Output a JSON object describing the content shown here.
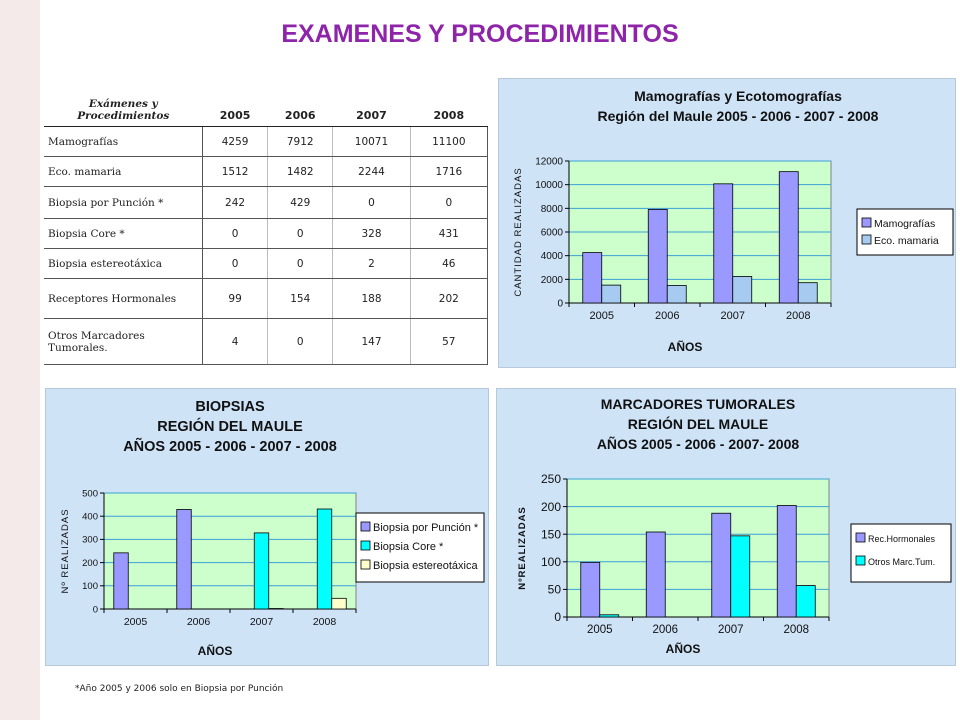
{
  "page": {
    "title": "EXAMENES Y PROCEDIMIENTOS",
    "footnote": "*Año 2005 y 2006 solo en  Biopsia por Punción"
  },
  "table": {
    "header": [
      "Exámenes y Procedimientos",
      "2005",
      "2006",
      "2007",
      "2008"
    ],
    "rows": [
      {
        "label": "Mamografías",
        "values": [
          "4259",
          "7912",
          "10071",
          "11100"
        ]
      },
      {
        "label": "Eco. mamaria",
        "values": [
          "1512",
          "1482",
          "2244",
          "1716"
        ]
      },
      {
        "label": "Biopsia por Punción *",
        "values": [
          "242",
          "429",
          "0",
          "0"
        ]
      },
      {
        "label": "Biopsia Core *",
        "values": [
          "0",
          "0",
          "328",
          "431"
        ]
      },
      {
        "label": "Biopsia estereotáxica",
        "values": [
          "0",
          "0",
          "2",
          "46"
        ]
      },
      {
        "label": "Receptores Hormonales",
        "values": [
          "99",
          "154",
          "188",
          "202"
        ]
      },
      {
        "label": "Otros Marcadores Tumorales.",
        "values": [
          "4",
          "0",
          "147",
          "57"
        ]
      }
    ]
  },
  "chart_data": [
    {
      "type": "bar",
      "title": [
        "Mamografías y Ecotomografías",
        "Región del Maule 2005 - 2006 - 2007 - 2008"
      ],
      "xlabel": "AÑOS",
      "ylabel": "CANTIDAD REALIZADAS",
      "ylim": [
        0,
        12000
      ],
      "yticks": [
        0,
        2000,
        4000,
        6000,
        8000,
        10000,
        12000
      ],
      "categories": [
        "2005",
        "2006",
        "2007",
        "2008"
      ],
      "series": [
        {
          "name": "Mamografías",
          "color": "#9999ff",
          "values": [
            4259,
            7912,
            10071,
            11100
          ]
        },
        {
          "name": "Eco. mamaria",
          "color": "#a6caf0",
          "values": [
            1512,
            1482,
            2244,
            1716
          ]
        }
      ],
      "grid": true,
      "legend": "right"
    },
    {
      "type": "bar",
      "title": [
        "BIOPSIAS",
        "REGIÓN DEL MAULE",
        "AÑOS 2005 - 2006 - 2007 - 2008"
      ],
      "xlabel": "AÑOS",
      "ylabel": "Nº REALIZADAS",
      "ylim": [
        0,
        500
      ],
      "yticks": [
        0,
        100,
        200,
        300,
        400,
        500
      ],
      "categories": [
        "2005",
        "2006",
        "2007",
        "2008"
      ],
      "series": [
        {
          "name": "Biopsia por Punción *",
          "color": "#9999ff",
          "values": [
            242,
            429,
            0,
            0
          ]
        },
        {
          "name": "Biopsia Core *",
          "color": "#00ffff",
          "values": [
            0,
            0,
            328,
            431
          ]
        },
        {
          "name": "Biopsia estereotáxica",
          "color": "#ffffcc",
          "values": [
            0,
            0,
            2,
            46
          ]
        }
      ],
      "grid": true,
      "legend": "right"
    },
    {
      "type": "bar",
      "title": [
        "MARCADORES TUMORALES",
        "REGIÓN DEL MAULE",
        "AÑOS 2005 - 2006 - 2007- 2008"
      ],
      "xlabel": "AÑOS",
      "ylabel": "NºREALIZADAS",
      "ylim": [
        0,
        250
      ],
      "yticks": [
        0,
        50,
        100,
        150,
        200,
        250
      ],
      "categories": [
        "2005",
        "2006",
        "2007",
        "2008"
      ],
      "series": [
        {
          "name": "Rec.Hormonales",
          "color": "#9999ff",
          "values": [
            99,
            154,
            188,
            202
          ]
        },
        {
          "name": "Otros Marc.Tum.",
          "color": "#00ffff",
          "values": [
            4,
            0,
            147,
            57
          ]
        }
      ],
      "grid": true,
      "legend": "right"
    }
  ]
}
